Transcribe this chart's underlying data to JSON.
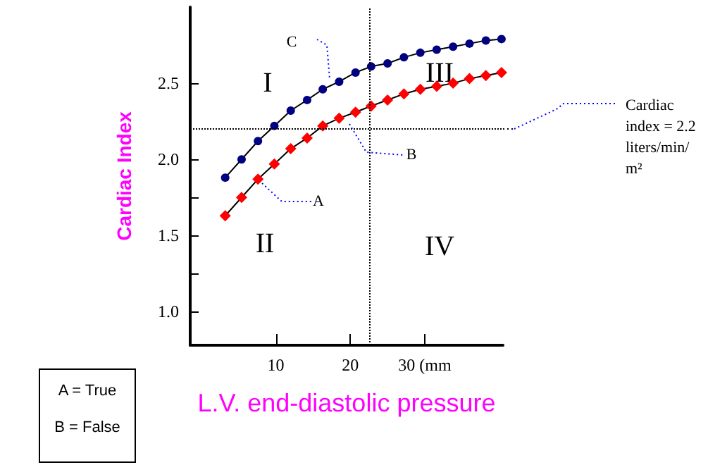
{
  "chart_data": {
    "type": "line",
    "xlabel": "L.V. end-diastolic pressure",
    "ylabel": "Cardiac Index",
    "xlim": [
      -1.5,
      40.5
    ],
    "xticks": [
      10,
      20,
      {
        "value": 30,
        "label": "30 (mm"
      }
    ],
    "ylim": [
      0.78,
      3.0
    ],
    "yticks": [
      {
        "value": 1,
        "label": "1.0"
      },
      {
        "value": 1.25,
        "label": null
      },
      1.5,
      {
        "value": 1.75,
        "label": null
      },
      {
        "value": 2,
        "label": "2.0"
      },
      2.5
    ],
    "grid": false,
    "line_style": "solid",
    "series": [
      {
        "color": "#000080",
        "marker": "circle",
        "x": [
          3.2,
          5.4,
          7.6,
          9.8,
          12.0,
          14.2,
          16.3,
          18.5,
          20.7,
          22.8,
          25.0,
          27.2,
          29.4,
          31.6,
          33.8,
          36.0,
          38.2,
          40.3
        ],
        "values": [
          1.88,
          2.0,
          2.12,
          2.22,
          2.32,
          2.39,
          2.46,
          2.51,
          2.57,
          2.61,
          2.63,
          2.67,
          2.7,
          2.72,
          2.74,
          2.76,
          2.78,
          2.79
        ]
      },
      {
        "color": "#ff0000",
        "marker": "diamond",
        "x": [
          3.2,
          5.4,
          7.6,
          9.8,
          12.0,
          14.2,
          16.3,
          18.5,
          20.7,
          22.8,
          25.0,
          27.2,
          29.4,
          31.6,
          33.8,
          36.0,
          38.2,
          40.3
        ],
        "values": [
          1.63,
          1.75,
          1.87,
          1.97,
          2.07,
          2.14,
          2.22,
          2.27,
          2.31,
          2.35,
          2.39,
          2.43,
          2.46,
          2.48,
          2.5,
          2.53,
          2.55,
          2.57
        ]
      }
    ],
    "ref_lines": [
      {
        "axis": "y",
        "value": 2.2,
        "label": "Cardiac index = 2.2 liters/min/m²",
        "line_style": "dotted",
        "color": "#000000"
      },
      {
        "axis": "x",
        "value": 22.5,
        "line_style": "dotted",
        "color": "#000000"
      }
    ],
    "annotations": [
      "A",
      "B",
      "C",
      "I",
      "II",
      "III",
      "IV",
      "A = True",
      "B = False"
    ]
  }
}
